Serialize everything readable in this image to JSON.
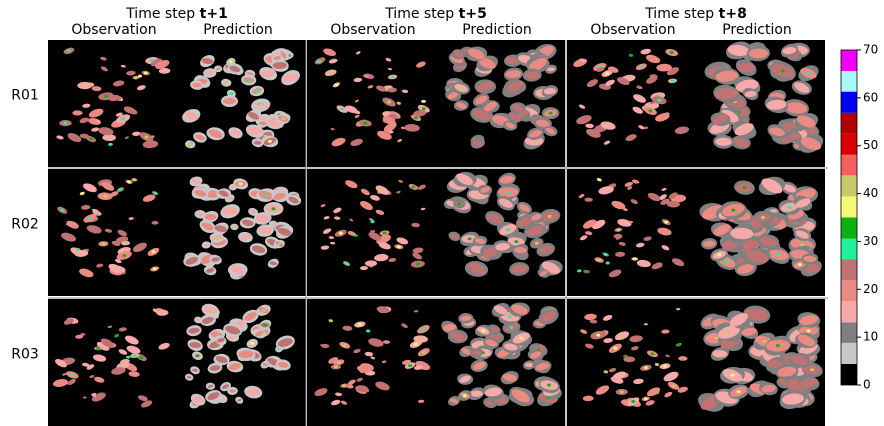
{
  "headers": [
    {
      "prefix": "Time step ",
      "step": "t+1"
    },
    {
      "prefix": "Time step ",
      "step": "t+5"
    },
    {
      "prefix": "Time step ",
      "step": "t+8"
    }
  ],
  "columns": [
    "Observation",
    "Prediction"
  ],
  "rows": [
    "R01",
    "R02",
    "R03"
  ],
  "colorbar": {
    "ylim": [
      0,
      70
    ],
    "ticks": [
      0,
      10,
      20,
      30,
      40,
      50,
      60,
      70
    ],
    "bounds": [
      0,
      4.4,
      8.8,
      13.1,
      17.5,
      21.9,
      26.3,
      30.6,
      35,
      39.4,
      43.8,
      48.1,
      52.5,
      56.9,
      61.3,
      65.6,
      70
    ],
    "colors": [
      "#000000",
      "#c8c8c8",
      "#808080",
      "#f7a8a8",
      "#ea8a82",
      "#c07272",
      "#22f09a",
      "#10b010",
      "#f8f878",
      "#c8c86a",
      "#f46060",
      "#d80000",
      "#b00000",
      "#0000f0",
      "#a8f8f8",
      "#f000f8"
    ]
  }
}
